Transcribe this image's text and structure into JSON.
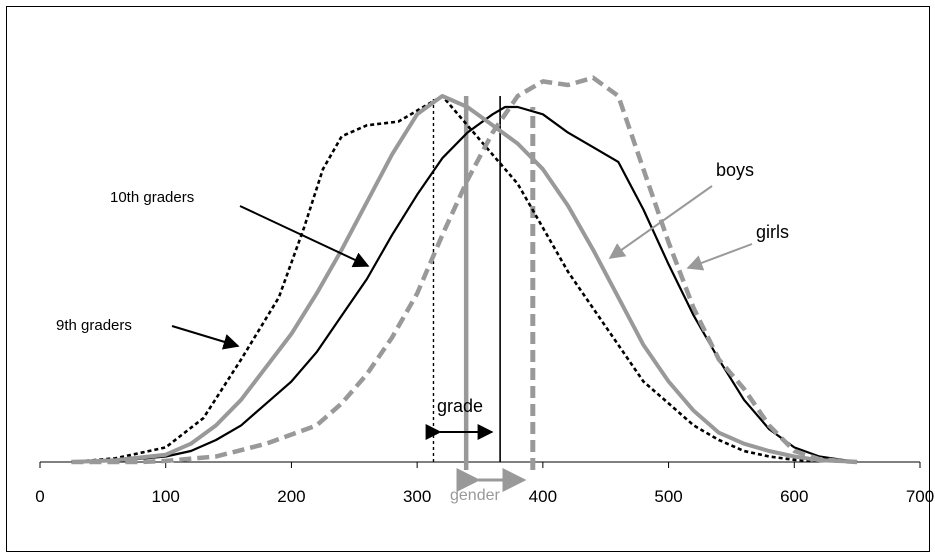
{
  "chart_data": {
    "type": "line",
    "xlim": [
      0,
      700
    ],
    "x_ticks": [
      0,
      100,
      200,
      300,
      400,
      500,
      600,
      700
    ],
    "x_tick_labels": [
      "0",
      "100",
      "200",
      "300",
      "400",
      "500",
      "600",
      "700"
    ],
    "y_axis_shown": false,
    "grid": false,
    "legend": "none",
    "series": [
      {
        "name": "9th graders",
        "color": "#000000",
        "style": "dotted",
        "x": [
          25,
          60,
          100,
          130,
          160,
          190,
          210,
          225,
          240,
          260,
          285,
          310,
          320,
          340,
          360,
          380,
          400,
          420,
          440,
          460,
          480,
          500,
          520,
          540,
          560,
          580,
          600,
          620,
          640,
          650
        ],
        "y": [
          0.0,
          0.01,
          0.04,
          0.12,
          0.28,
          0.45,
          0.64,
          0.8,
          0.89,
          0.92,
          0.93,
          0.98,
          1.0,
          0.92,
          0.84,
          0.76,
          0.64,
          0.52,
          0.42,
          0.32,
          0.22,
          0.16,
          0.1,
          0.06,
          0.03,
          0.015,
          0.006,
          0.003,
          0.001,
          0.0
        ]
      },
      {
        "name": "10th graders",
        "color": "#000000",
        "style": "solid",
        "x": [
          25,
          60,
          100,
          120,
          140,
          160,
          180,
          200,
          220,
          240,
          260,
          280,
          300,
          320,
          340,
          360,
          370,
          380,
          400,
          420,
          440,
          460,
          480,
          500,
          520,
          540,
          560,
          580,
          600,
          620,
          640,
          650
        ],
        "y": [
          0.0,
          0.003,
          0.015,
          0.03,
          0.06,
          0.1,
          0.16,
          0.22,
          0.3,
          0.4,
          0.5,
          0.62,
          0.73,
          0.83,
          0.9,
          0.95,
          0.97,
          0.97,
          0.95,
          0.9,
          0.86,
          0.82,
          0.69,
          0.54,
          0.4,
          0.28,
          0.17,
          0.09,
          0.04,
          0.015,
          0.005,
          0.0
        ]
      },
      {
        "name": "boys",
        "color": "#999999",
        "style": "solid-thick",
        "x": [
          25,
          60,
          100,
          120,
          140,
          160,
          180,
          200,
          220,
          240,
          260,
          280,
          300,
          320,
          340,
          360,
          380,
          400,
          420,
          440,
          460,
          480,
          500,
          520,
          540,
          560,
          580,
          600,
          620,
          640,
          650
        ],
        "y": [
          0.0,
          0.005,
          0.02,
          0.05,
          0.1,
          0.17,
          0.26,
          0.35,
          0.46,
          0.58,
          0.71,
          0.84,
          0.95,
          1.0,
          0.97,
          0.92,
          0.87,
          0.8,
          0.7,
          0.58,
          0.45,
          0.32,
          0.22,
          0.14,
          0.08,
          0.05,
          0.03,
          0.015,
          0.005,
          0.002,
          0.0
        ]
      },
      {
        "name": "girls",
        "color": "#999999",
        "style": "dashed-thick",
        "x": [
          25,
          80,
          100,
          140,
          180,
          220,
          240,
          260,
          280,
          300,
          320,
          340,
          360,
          380,
          400,
          420,
          440,
          460,
          480,
          500,
          520,
          540,
          560,
          580,
          600,
          620,
          640,
          650
        ],
        "y": [
          0.0,
          0.0,
          0.003,
          0.015,
          0.05,
          0.1,
          0.16,
          0.24,
          0.34,
          0.46,
          0.62,
          0.77,
          0.9,
          1.0,
          1.04,
          1.03,
          1.05,
          1.0,
          0.8,
          0.6,
          0.42,
          0.28,
          0.2,
          0.1,
          0.03,
          0.008,
          0.002,
          0.0
        ]
      }
    ],
    "reference_lines": [
      {
        "x": 313,
        "style": "dotted",
        "color": "#000000"
      },
      {
        "x": 366,
        "style": "solid-thin",
        "color": "#000000"
      },
      {
        "x": 339,
        "style": "solid-thick",
        "color": "#999999"
      },
      {
        "x": 392,
        "style": "dashed-thick",
        "color": "#999999"
      }
    ],
    "annotations": [
      {
        "text": "10th graders",
        "target_series": "10th graders"
      },
      {
        "text": "9th graders",
        "target_series": "9th graders"
      },
      {
        "text": "boys",
        "target_series": "boys"
      },
      {
        "text": "girls",
        "target_series": "girls"
      },
      {
        "text": "grade",
        "spans": [
          313,
          366
        ]
      },
      {
        "text": "gender",
        "spans": [
          339,
          392
        ]
      }
    ]
  }
}
